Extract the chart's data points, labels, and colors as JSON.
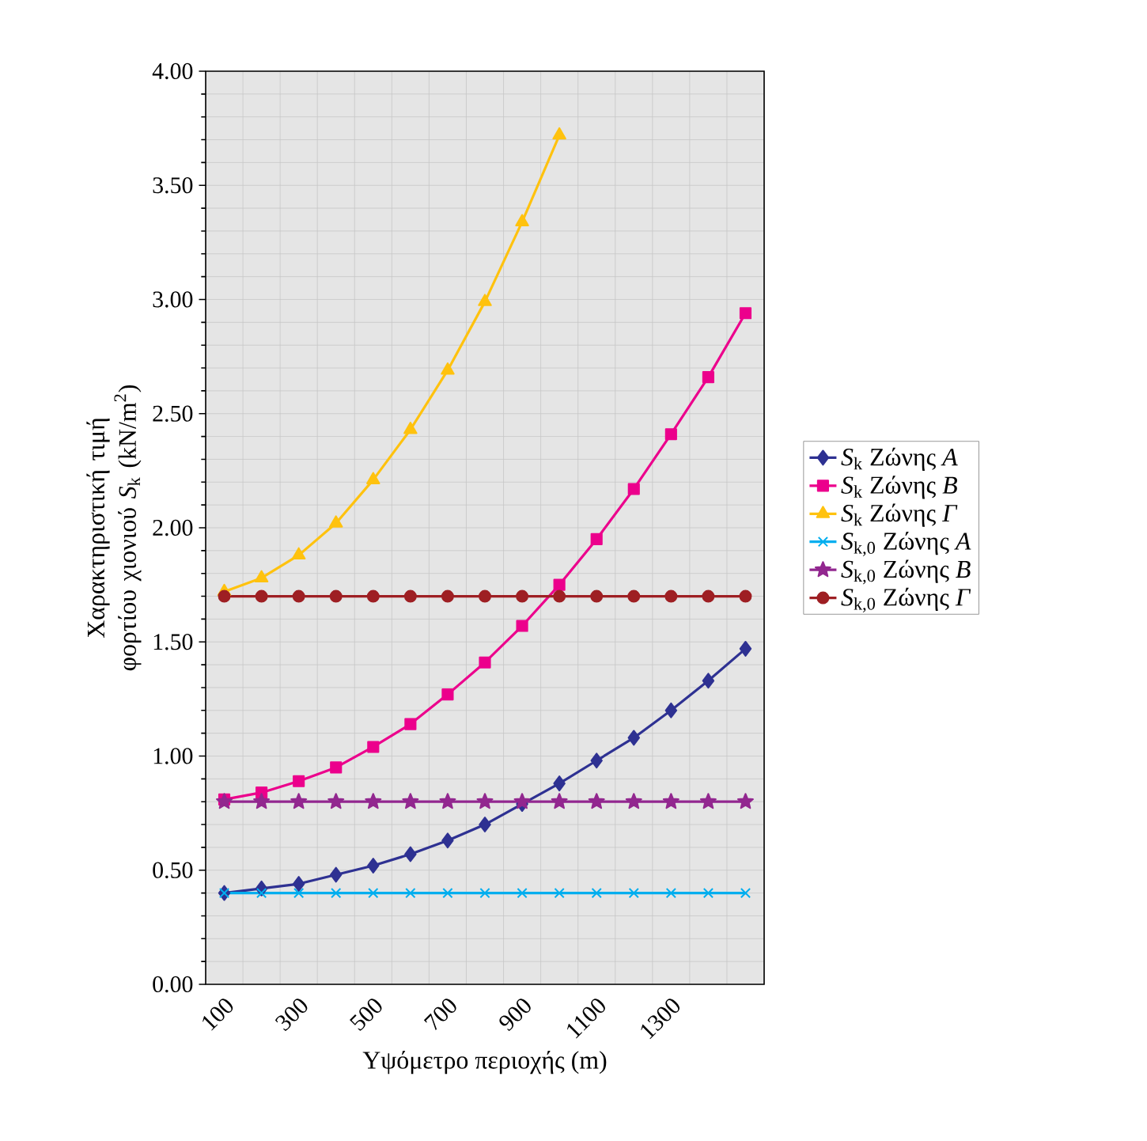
{
  "chart_data": {
    "type": "line",
    "xlabel": "Υψόμετρο περιοχής (m)",
    "ylabel": "Χαρακτηριστική τιμή φορτίου χιονιού *S*$_{k}$ (kN/m$^{2}$)",
    "categories": [
      "100",
      null,
      "300",
      null,
      "500",
      null,
      "700",
      null,
      "900",
      null,
      "1100",
      null,
      "1300",
      null,
      null
    ],
    "ylim": [
      0,
      4
    ],
    "yticks": [
      {
        "value": 0,
        "label": "0.00"
      },
      {
        "value": 0.5,
        "label": "0.50"
      },
      {
        "value": 1,
        "label": "1.00"
      },
      {
        "value": 1.5,
        "label": "1.50"
      },
      {
        "value": 2,
        "label": "2.00"
      },
      {
        "value": 2.5,
        "label": "2.50"
      },
      {
        "value": 3,
        "label": "3.00"
      },
      {
        "value": 3.5,
        "label": "3.50"
      },
      {
        "value": 4,
        "label": "4.00"
      }
    ],
    "grid": true,
    "legend": "right",
    "line_style": "solid",
    "series": [
      {
        "name": "*S*$_{k}$  Ζώνης *Α*",
        "color": "#2e3192",
        "marker": "diamond",
        "values": [
          0.4,
          0.42,
          0.44,
          0.48,
          0.52,
          0.57,
          0.63,
          0.7,
          0.79,
          0.88,
          0.98,
          1.08,
          1.2,
          1.33,
          1.47
        ]
      },
      {
        "name": "*S*$_{k}$  Ζώνης *Β*",
        "color": "#ec008c",
        "marker": "square",
        "values": [
          0.81,
          0.84,
          0.89,
          0.95,
          1.04,
          1.14,
          1.27,
          1.41,
          1.57,
          1.75,
          1.95,
          2.17,
          2.41,
          2.66,
          2.94
        ]
      },
      {
        "name": "*S*$_{k}$  Ζώνης *Γ*",
        "color": "#ffc20e",
        "marker": "triangle",
        "values": [
          1.72,
          1.78,
          1.88,
          2.02,
          2.21,
          2.43,
          2.69,
          2.99,
          3.34,
          3.72,
          null,
          null,
          null,
          null,
          null
        ]
      },
      {
        "name": "*S*$_{k,0}$  Ζώνης *Α*",
        "color": "#00aeef",
        "marker": "cross",
        "values": [
          0.4,
          0.4,
          0.4,
          0.4,
          0.4,
          0.4,
          0.4,
          0.4,
          0.4,
          0.4,
          0.4,
          0.4,
          0.4,
          0.4,
          0.4
        ]
      },
      {
        "name": "*S*$_{k,0}$  Ζώνης *Β*",
        "color": "#92278f",
        "marker": "star",
        "values": [
          0.8,
          0.8,
          0.8,
          0.8,
          0.8,
          0.8,
          0.8,
          0.8,
          0.8,
          0.8,
          0.8,
          0.8,
          0.8,
          0.8,
          0.8
        ]
      },
      {
        "name": "*S*$_{k,0}$  Ζώνης *Γ*",
        "color": "#9e1f23",
        "marker": "circle",
        "values": [
          1.7,
          1.7,
          1.7,
          1.7,
          1.7,
          1.7,
          1.7,
          1.7,
          1.7,
          1.7,
          1.7,
          1.7,
          1.7,
          1.7,
          1.7
        ]
      }
    ]
  }
}
